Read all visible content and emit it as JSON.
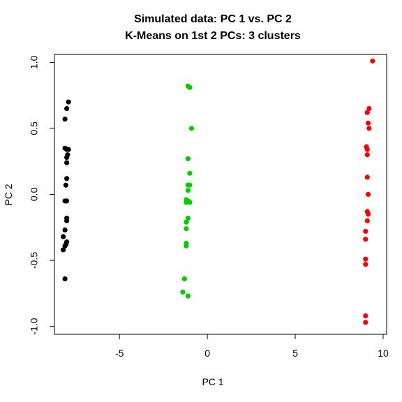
{
  "chart_data": {
    "type": "scatter",
    "title": "Simulated data: PC 1 vs. PC 2",
    "subtitle": "K-Means on 1st 2 PCs: 3 clusters",
    "xlabel": "PC 1",
    "ylabel": "PC 2",
    "xlim": [
      -8.7,
      10.2
    ],
    "ylim": [
      -1.06,
      1.06
    ],
    "xticks": [
      -5,
      0,
      5,
      10
    ],
    "yticks": [
      -1.0,
      -0.5,
      0.0,
      0.5,
      1.0
    ],
    "xtick_labels": [
      "-5",
      "0",
      "5",
      "10"
    ],
    "ytick_labels": [
      "-1.0",
      "-0.5",
      "0.0",
      "0.5",
      "1.0"
    ],
    "grid": false,
    "legend": "none",
    "series": [
      {
        "color": "#000000",
        "points": [
          [
            -7.9,
            0.7
          ],
          [
            -8.0,
            0.65
          ],
          [
            -8.1,
            0.57
          ],
          [
            -8.1,
            0.35
          ],
          [
            -8.0,
            0.34
          ],
          [
            -7.9,
            0.34
          ],
          [
            -7.95,
            0.3
          ],
          [
            -8.0,
            0.28
          ],
          [
            -8.0,
            0.24
          ],
          [
            -8.0,
            0.12
          ],
          [
            -8.05,
            0.07
          ],
          [
            -8.1,
            -0.05
          ],
          [
            -8.0,
            -0.05
          ],
          [
            -8.0,
            -0.18
          ],
          [
            -8.0,
            -0.2
          ],
          [
            -8.1,
            -0.27
          ],
          [
            -8.2,
            -0.32
          ],
          [
            -8.0,
            -0.36
          ],
          [
            -8.05,
            -0.38
          ],
          [
            -8.1,
            -0.39
          ],
          [
            -8.2,
            -0.42
          ],
          [
            -8.1,
            -0.64
          ]
        ]
      },
      {
        "color": "#00cd00",
        "points": [
          [
            -1.1,
            0.82
          ],
          [
            -1.0,
            0.81
          ],
          [
            -0.9,
            0.5
          ],
          [
            -1.1,
            0.27
          ],
          [
            -1.0,
            0.16
          ],
          [
            -1.1,
            0.07
          ],
          [
            -1.0,
            0.07
          ],
          [
            -1.1,
            0.03
          ],
          [
            -1.2,
            -0.04
          ],
          [
            -1.1,
            -0.05
          ],
          [
            -1.2,
            -0.06
          ],
          [
            -1.0,
            -0.06
          ],
          [
            -1.1,
            -0.18
          ],
          [
            -1.2,
            -0.21
          ],
          [
            -1.2,
            -0.26
          ],
          [
            -1.2,
            -0.37
          ],
          [
            -1.2,
            -0.39
          ],
          [
            -1.3,
            -0.64
          ],
          [
            -1.4,
            -0.74
          ],
          [
            -1.1,
            -0.77
          ]
        ]
      },
      {
        "color": "#ff0000",
        "points": [
          [
            9.4,
            1.01
          ],
          [
            9.2,
            0.65
          ],
          [
            9.1,
            0.62
          ],
          [
            9.15,
            0.54
          ],
          [
            9.2,
            0.5
          ],
          [
            9.05,
            0.36
          ],
          [
            9.1,
            0.34
          ],
          [
            9.1,
            0.3
          ],
          [
            9.1,
            0.13
          ],
          [
            9.15,
            0.0
          ],
          [
            9.1,
            -0.13
          ],
          [
            9.15,
            -0.15
          ],
          [
            9.1,
            -0.2
          ],
          [
            9.0,
            -0.28
          ],
          [
            9.0,
            -0.34
          ],
          [
            9.0,
            -0.49
          ],
          [
            9.0,
            -0.53
          ],
          [
            9.0,
            -0.92
          ],
          [
            9.0,
            -0.97
          ]
        ]
      }
    ]
  }
}
